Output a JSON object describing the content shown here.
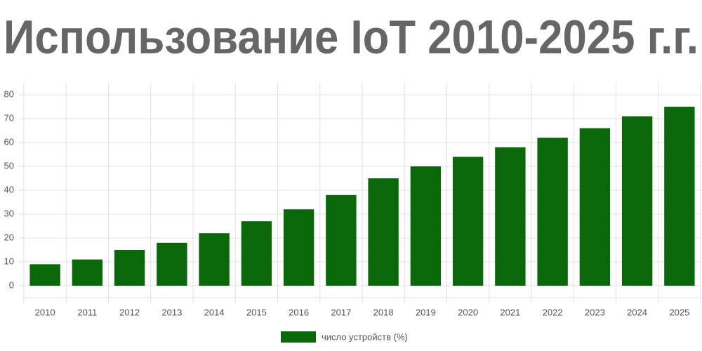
{
  "chart_data": {
    "type": "bar",
    "title": "Использование IoT 2010-2025 г.г.",
    "categories": [
      "2010",
      "2011",
      "2012",
      "2013",
      "2014",
      "2015",
      "2016",
      "2017",
      "2018",
      "2019",
      "2020",
      "2021",
      "2022",
      "2023",
      "2024",
      "2025"
    ],
    "series": [
      {
        "name": "число устройств (%)",
        "color": "#0a670a",
        "values": [
          9,
          11,
          15,
          18,
          22,
          27,
          32,
          38,
          45,
          50,
          54,
          58,
          62,
          66,
          71,
          75
        ]
      }
    ],
    "ylim": [
      -5,
      85
    ],
    "yticks": [
      0,
      10,
      20,
      30,
      40,
      50,
      60,
      70,
      80
    ],
    "grid": true,
    "legend": "bottom"
  }
}
